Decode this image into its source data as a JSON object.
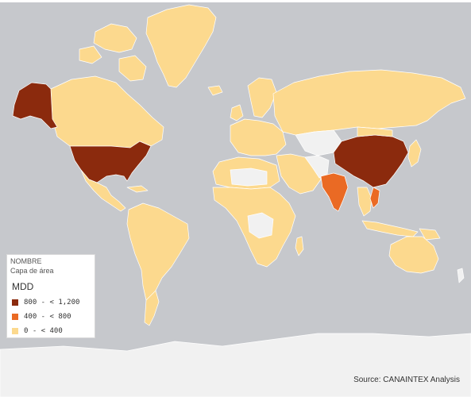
{
  "colors": {
    "ocean": "#c6c8cc",
    "no_data": "#f1f1f1",
    "high": "#8b2a0d",
    "mid": "#ea6a24",
    "low": "#fcd98e",
    "coast": "#ffffff"
  },
  "legend": {
    "field_name": "NOMBRE",
    "layer_name": "Capa de área",
    "measure": "MDD",
    "items": [
      {
        "label": "800 - < 1,200",
        "color": "#8b2a0d"
      },
      {
        "label": "400 - < 800",
        "color": "#ea6a24"
      },
      {
        "label": "0 - < 400",
        "color": "#fcd98e"
      }
    ]
  },
  "regions": [
    {
      "name": "Alaska (USA)",
      "class": "high"
    },
    {
      "name": "United States",
      "class": "high"
    },
    {
      "name": "China",
      "class": "high"
    },
    {
      "name": "India",
      "class": "mid"
    },
    {
      "name": "Vietnam",
      "class": "mid"
    }
  ],
  "source": "Source: CANAINTEX Analysis"
}
